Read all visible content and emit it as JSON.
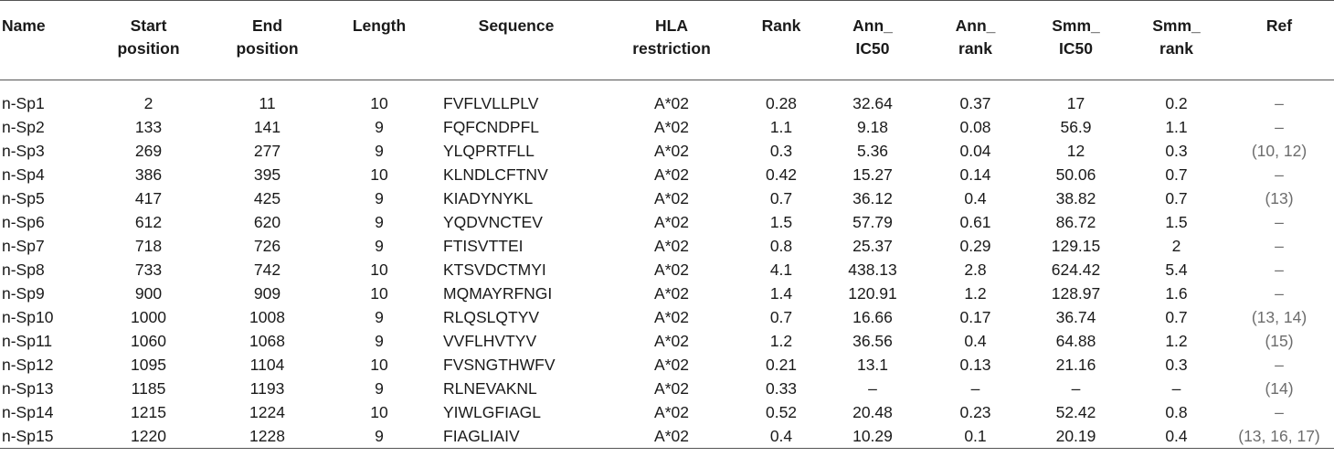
{
  "table": {
    "headers": [
      {
        "line1": "Name",
        "line2": ""
      },
      {
        "line1": "Start",
        "line2": "position"
      },
      {
        "line1": "End",
        "line2": "position"
      },
      {
        "line1": "Length",
        "line2": ""
      },
      {
        "line1": "Sequence",
        "line2": ""
      },
      {
        "line1": "HLA",
        "line2": "restriction"
      },
      {
        "line1": "Rank",
        "line2": ""
      },
      {
        "line1": "Ann_",
        "line2": "IC50"
      },
      {
        "line1": "Ann_",
        "line2": "rank"
      },
      {
        "line1": "Smm_",
        "line2": "IC50"
      },
      {
        "line1": "Smm_",
        "line2": "rank"
      },
      {
        "line1": "Ref",
        "line2": ""
      }
    ],
    "rows": [
      [
        "n-Sp1",
        "2",
        "11",
        "10",
        "FVFLVLLPLV",
        "A*02",
        "0.28",
        "32.64",
        "0.37",
        "17",
        "0.2",
        "–"
      ],
      [
        "n-Sp2",
        "133",
        "141",
        "9",
        "FQFCNDPFL",
        "A*02",
        "1.1",
        "9.18",
        "0.08",
        "56.9",
        "1.1",
        "–"
      ],
      [
        "n-Sp3",
        "269",
        "277",
        "9",
        "YLQPRTFLL",
        "A*02",
        "0.3",
        "5.36",
        "0.04",
        "12",
        "0.3",
        "(10, 12)"
      ],
      [
        "n-Sp4",
        "386",
        "395",
        "10",
        "KLNDLCFTNV",
        "A*02",
        "0.42",
        "15.27",
        "0.14",
        "50.06",
        "0.7",
        "–"
      ],
      [
        "n-Sp5",
        "417",
        "425",
        "9",
        "KIADYNYKL",
        "A*02",
        "0.7",
        "36.12",
        "0.4",
        "38.82",
        "0.7",
        "(13)"
      ],
      [
        "n-Sp6",
        "612",
        "620",
        "9",
        "YQDVNCTEV",
        "A*02",
        "1.5",
        "57.79",
        "0.61",
        "86.72",
        "1.5",
        "–"
      ],
      [
        "n-Sp7",
        "718",
        "726",
        "9",
        "FTISVTTEI",
        "A*02",
        "0.8",
        "25.37",
        "0.29",
        "129.15",
        "2",
        "–"
      ],
      [
        "n-Sp8",
        "733",
        "742",
        "10",
        "KTSVDCTMYI",
        "A*02",
        "4.1",
        "438.13",
        "2.8",
        "624.42",
        "5.4",
        "–"
      ],
      [
        "n-Sp9",
        "900",
        "909",
        "10",
        "MQMAYRFNGI",
        "A*02",
        "1.4",
        "120.91",
        "1.2",
        "128.97",
        "1.6",
        "–"
      ],
      [
        "n-Sp10",
        "1000",
        "1008",
        "9",
        "RLQSLQTYV",
        "A*02",
        "0.7",
        "16.66",
        "0.17",
        "36.74",
        "0.7",
        "(13, 14)"
      ],
      [
        "n-Sp11",
        "1060",
        "1068",
        "9",
        "VVFLHVTYV",
        "A*02",
        "1.2",
        "36.56",
        "0.4",
        "64.88",
        "1.2",
        "(15)"
      ],
      [
        "n-Sp12",
        "1095",
        "1104",
        "10",
        "FVSNGTHWFV",
        "A*02",
        "0.21",
        "13.1",
        "0.13",
        "21.16",
        "0.3",
        "–"
      ],
      [
        "n-Sp13",
        "1185",
        "1193",
        "9",
        "RLNEVAKNL",
        "A*02",
        "0.33",
        "–",
        "–",
        "–",
        "–",
        "(14)"
      ],
      [
        "n-Sp14",
        "1215",
        "1224",
        "10",
        "YIWLGFIAGL",
        "A*02",
        "0.52",
        "20.48",
        "0.23",
        "52.42",
        "0.8",
        "–"
      ],
      [
        "n-Sp15",
        "1220",
        "1228",
        "9",
        "FIAGLIAIV",
        "A*02",
        "0.4",
        "10.29",
        "0.1",
        "20.19",
        "0.4",
        "(13, 16, 17)"
      ]
    ]
  }
}
